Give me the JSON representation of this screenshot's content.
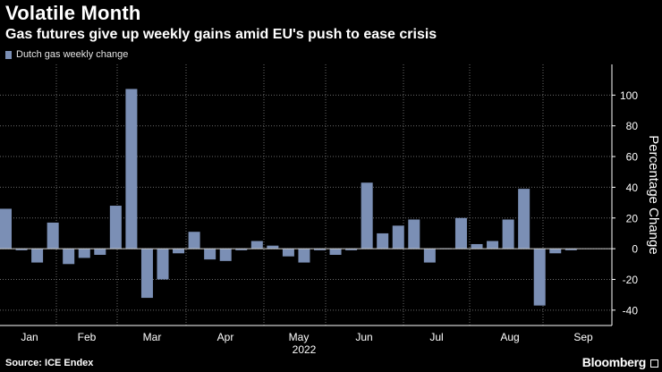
{
  "header": {
    "title": "Volatile Month",
    "subtitle": "Gas futures give up weekly gains amid EU's push to ease crisis"
  },
  "footer": {
    "source": "Source: ICE Endex",
    "brand": "Bloomberg"
  },
  "colors": {
    "bar": "#7b8fb5",
    "background": "#000000",
    "text": "#ffffff",
    "grid": "#6a6a6a"
  },
  "chart_data": {
    "type": "bar",
    "title": "Volatile Month",
    "subtitle": "Gas futures give up weekly gains amid EU's push to ease crisis",
    "legend": [
      "Dutch gas weekly change"
    ],
    "legend_position": "top-left",
    "xlabel": "2022",
    "ylabel": "Percentage Change",
    "ylim": [
      -50,
      120
    ],
    "yticks": [
      -40,
      -20,
      0,
      20,
      40,
      60,
      80,
      100
    ],
    "grid": true,
    "month_labels": [
      "Jan",
      "Feb",
      "Mar",
      "Apr",
      "May",
      "Jun",
      "Jul",
      "Aug",
      "Sep"
    ],
    "series": [
      {
        "name": "Dutch gas weekly change",
        "values": [
          26,
          -1,
          -9,
          17,
          -10,
          -6,
          -4,
          28,
          104,
          -32,
          -20,
          -3,
          11,
          -7,
          -8,
          -1,
          5,
          2,
          -5,
          -9,
          -1,
          -4,
          -1,
          43,
          10,
          15,
          19,
          -9,
          0,
          20,
          3,
          5,
          19,
          39,
          -37,
          -3,
          -1
        ]
      }
    ]
  }
}
